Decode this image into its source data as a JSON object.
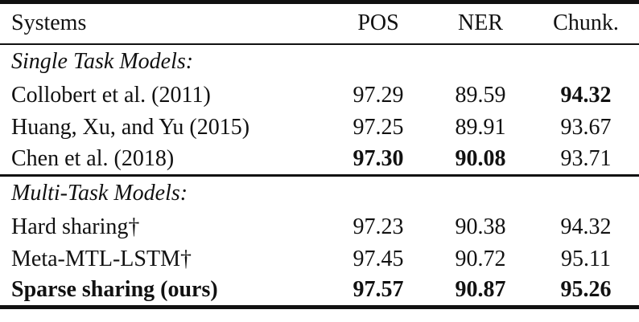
{
  "table": {
    "columns": {
      "systems": "Systems",
      "pos": "POS",
      "ner": "NER",
      "chunk": "Chunk."
    },
    "sections": [
      {
        "header": "Single Task Models:",
        "rows": [
          {
            "system": "Collobert et al. (2011)",
            "system_bold": false,
            "values": [
              "97.29",
              "89.59",
              "94.32"
            ],
            "bold": [
              false,
              false,
              true
            ]
          },
          {
            "system": "Huang, Xu, and Yu (2015)",
            "system_bold": false,
            "values": [
              "97.25",
              "89.91",
              "93.67"
            ],
            "bold": [
              false,
              false,
              false
            ]
          },
          {
            "system": "Chen et al. (2018)",
            "system_bold": false,
            "values": [
              "97.30",
              "90.08",
              "93.71"
            ],
            "bold": [
              true,
              true,
              false
            ]
          }
        ]
      },
      {
        "header": "Multi-Task Models:",
        "rows": [
          {
            "system": "Hard sharing†",
            "system_bold": false,
            "values": [
              "97.23",
              "90.38",
              "94.32"
            ],
            "bold": [
              false,
              false,
              false
            ]
          },
          {
            "system": "Meta-MTL-LSTM†",
            "system_bold": false,
            "values": [
              "97.45",
              "90.72",
              "95.11"
            ],
            "bold": [
              false,
              false,
              false
            ]
          },
          {
            "system": "Sparse sharing (ours)",
            "system_bold": true,
            "values": [
              "97.57",
              "90.87",
              "95.26"
            ],
            "bold": [
              true,
              true,
              true
            ]
          }
        ]
      }
    ]
  }
}
